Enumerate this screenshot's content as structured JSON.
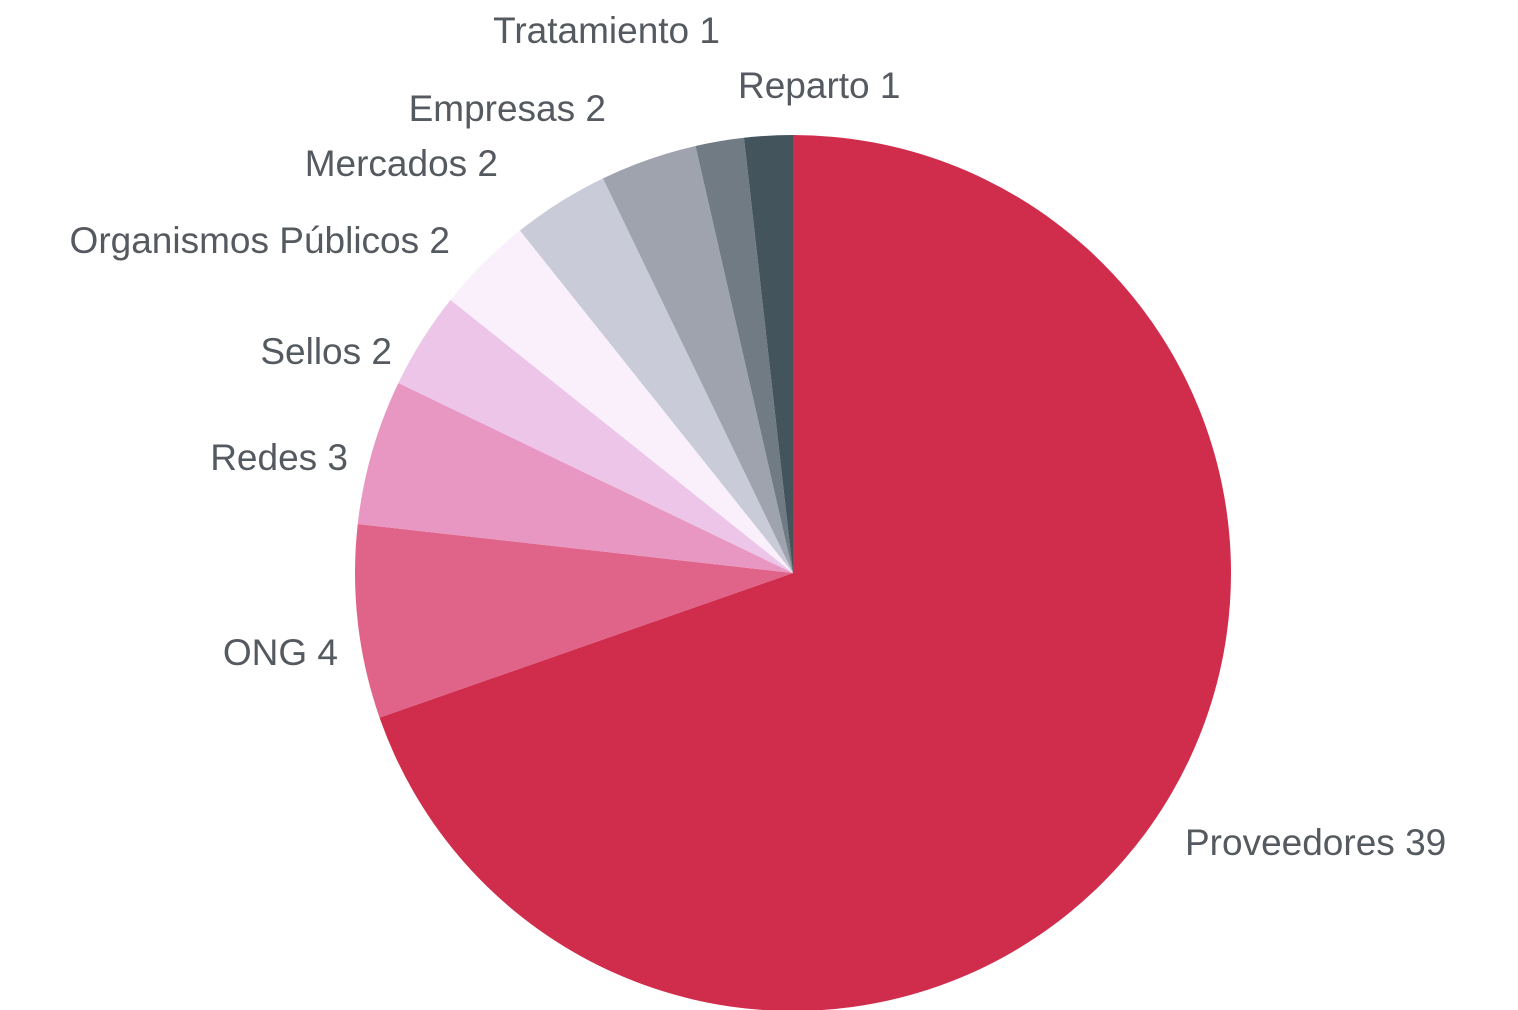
{
  "chart_data": {
    "type": "pie",
    "categories": [
      "Proveedores",
      "ONG",
      "Redes",
      "Sellos",
      "Organismos Públicos",
      "Mercados",
      "Empresas",
      "Tratamiento",
      "Reparto"
    ],
    "values": [
      39,
      4,
      3,
      2,
      2,
      2,
      2,
      1,
      1
    ],
    "colors": [
      "#d02c4c",
      "#e0648a",
      "#e897c2",
      "#edc5e8",
      "#f9f0fc",
      "#cacbd8",
      "#9ea3ad",
      "#717b84",
      "#44545c"
    ]
  }
}
